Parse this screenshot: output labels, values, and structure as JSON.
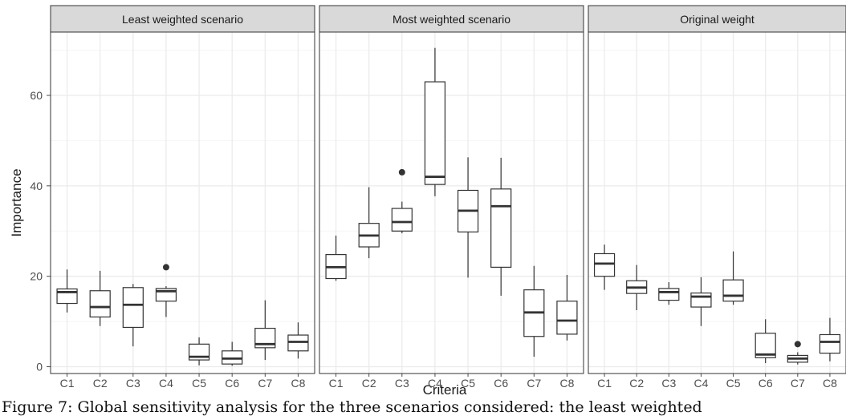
{
  "chart_data": {
    "type": "boxplot",
    "xlabel": "Criteria",
    "ylabel": "Importance",
    "ylim": [
      -1.5,
      74
    ],
    "yticks": [
      0,
      20,
      40,
      60
    ],
    "grid": true,
    "categories": [
      "C1",
      "C2",
      "C3",
      "C4",
      "C5",
      "C6",
      "C7",
      "C8"
    ],
    "panels": [
      {
        "title": "Least weighted scenario",
        "boxes": [
          {
            "category": "C1",
            "min": 12.0,
            "q1": 14.0,
            "median": 16.5,
            "q3": 17.2,
            "max": 21.5,
            "outliers": []
          },
          {
            "category": "C2",
            "min": 9.0,
            "q1": 11.0,
            "median": 13.2,
            "q3": 16.8,
            "max": 21.2,
            "outliers": []
          },
          {
            "category": "C3",
            "min": 4.5,
            "q1": 8.7,
            "median": 13.7,
            "q3": 17.5,
            "max": 18.3,
            "outliers": []
          },
          {
            "category": "C4",
            "min": 11.0,
            "q1": 14.5,
            "median": 16.7,
            "q3": 17.3,
            "max": 17.8,
            "outliers": [
              22.0
            ]
          },
          {
            "category": "C5",
            "min": 0.3,
            "q1": 1.5,
            "median": 2.2,
            "q3": 5.0,
            "max": 6.5,
            "outliers": []
          },
          {
            "category": "C6",
            "min": 0.2,
            "q1": 0.6,
            "median": 1.8,
            "q3": 3.5,
            "max": 5.5,
            "outliers": []
          },
          {
            "category": "C7",
            "min": 1.5,
            "q1": 4.2,
            "median": 5.0,
            "q3": 8.5,
            "max": 14.7,
            "outliers": []
          },
          {
            "category": "C8",
            "min": 1.8,
            "q1": 3.5,
            "median": 5.5,
            "q3": 7.0,
            "max": 9.8,
            "outliers": []
          }
        ]
      },
      {
        "title": "Most weighted scenario",
        "boxes": [
          {
            "category": "C1",
            "min": 19.0,
            "q1": 19.5,
            "median": 22.0,
            "q3": 24.8,
            "max": 29.0,
            "outliers": []
          },
          {
            "category": "C2",
            "min": 24.0,
            "q1": 26.5,
            "median": 29.0,
            "q3": 31.7,
            "max": 39.7,
            "outliers": []
          },
          {
            "category": "C3",
            "min": 29.5,
            "q1": 30.0,
            "median": 32.0,
            "q3": 35.0,
            "max": 36.5,
            "outliers": [
              43.0
            ]
          },
          {
            "category": "C4",
            "min": 37.7,
            "q1": 40.3,
            "median": 42.0,
            "q3": 63.0,
            "max": 70.5,
            "outliers": []
          },
          {
            "category": "C5",
            "min": 19.7,
            "q1": 29.8,
            "median": 34.5,
            "q3": 39.0,
            "max": 46.3,
            "outliers": []
          },
          {
            "category": "C6",
            "min": 15.7,
            "q1": 22.0,
            "median": 35.5,
            "q3": 39.3,
            "max": 46.2,
            "outliers": []
          },
          {
            "category": "C7",
            "min": 2.2,
            "q1": 6.7,
            "median": 12.0,
            "q3": 17.0,
            "max": 22.3,
            "outliers": []
          },
          {
            "category": "C8",
            "min": 5.8,
            "q1": 7.2,
            "median": 10.2,
            "q3": 14.5,
            "max": 20.3,
            "outliers": []
          }
        ]
      },
      {
        "title": "Original weight",
        "boxes": [
          {
            "category": "C1",
            "min": 17.0,
            "q1": 20.0,
            "median": 22.8,
            "q3": 25.0,
            "max": 27.0,
            "outliers": []
          },
          {
            "category": "C2",
            "min": 12.5,
            "q1": 16.2,
            "median": 17.5,
            "q3": 19.0,
            "max": 22.5,
            "outliers": []
          },
          {
            "category": "C3",
            "min": 13.7,
            "q1": 14.7,
            "median": 16.5,
            "q3": 17.3,
            "max": 18.7,
            "outliers": []
          },
          {
            "category": "C4",
            "min": 9.0,
            "q1": 13.2,
            "median": 15.5,
            "q3": 16.3,
            "max": 19.8,
            "outliers": []
          },
          {
            "category": "C5",
            "min": 13.7,
            "q1": 14.5,
            "median": 15.7,
            "q3": 19.2,
            "max": 25.5,
            "outliers": []
          },
          {
            "category": "C6",
            "min": 0.8,
            "q1": 2.0,
            "median": 2.7,
            "q3": 7.4,
            "max": 10.5,
            "outliers": []
          },
          {
            "category": "C7",
            "min": 0.5,
            "q1": 1.0,
            "median": 1.8,
            "q3": 2.5,
            "max": 3.2,
            "outliers": [
              5.0
            ]
          },
          {
            "category": "C8",
            "min": 1.2,
            "q1": 3.0,
            "median": 5.5,
            "q3": 7.1,
            "max": 10.8,
            "outliers": []
          }
        ]
      }
    ]
  },
  "caption": "Figure 7: Global sensitivity analysis for the three scenarios considered: the least weighted",
  "colors": {
    "panel_bg": "#ffffff",
    "strip_bg": "#d9d9d9",
    "border": "#333333",
    "grid_major": "#ebebeb",
    "grid_minor": "#f5f5f5",
    "box": "#333333",
    "text": "#1a1a1a",
    "tick_text": "#4d4d4d"
  }
}
